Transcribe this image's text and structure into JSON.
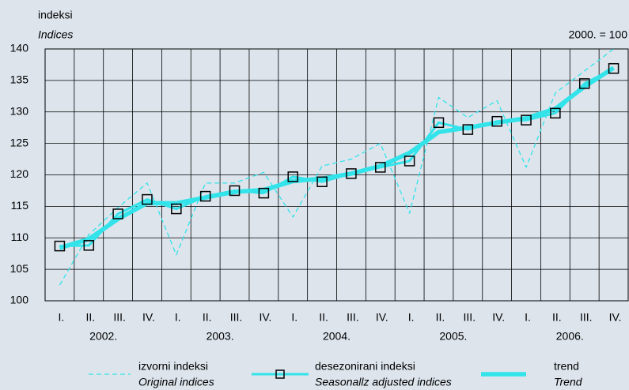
{
  "chart_data": {
    "type": "line",
    "y_label": "indeksi",
    "y_label_en": "Indices",
    "note": "2000. = 100",
    "categories": [
      "I.",
      "II.",
      "III.",
      "IV.",
      "I.",
      "II.",
      "III.",
      "IV.",
      "I.",
      "II.",
      "III.",
      "IV.",
      "I.",
      "II.",
      "III.",
      "IV.",
      "I.",
      "II.",
      "III.",
      "IV."
    ],
    "years": [
      "2002.",
      "2003.",
      "2004.",
      "2005.",
      "2006."
    ],
    "ylim": [
      100,
      140
    ],
    "yticks": [
      100,
      105,
      110,
      115,
      120,
      125,
      130,
      135,
      140
    ],
    "grid": true,
    "series": [
      {
        "name": "izvorni indeksi",
        "name_en": "Original indices",
        "color": "#33e3ea",
        "style": "dashed",
        "values": [
          102.5,
          110.5,
          114.8,
          118.7,
          107.3,
          118.7,
          118.7,
          120.4,
          113.3,
          121.4,
          122.5,
          125.0,
          113.9,
          132.3,
          129.1,
          131.8,
          121.2,
          133.0,
          136.5,
          140.0
        ]
      },
      {
        "name": "desezonirani indeksi",
        "name_en": "Seasonallz adjusted indices",
        "color": "#33e3ea",
        "style": "markers",
        "values": [
          108.7,
          108.8,
          113.8,
          116.1,
          114.6,
          116.6,
          117.5,
          117.1,
          119.7,
          118.9,
          120.2,
          121.2,
          122.2,
          128.3,
          127.2,
          128.5,
          128.7,
          129.8,
          134.5,
          136.9
        ]
      },
      {
        "name": "trend",
        "name_en": "Trend",
        "color": "#33e3ea",
        "style": "thick",
        "values": [
          108.4,
          109.8,
          113.0,
          115.5,
          115.5,
          116.4,
          117.3,
          117.6,
          119.0,
          119.4,
          120.2,
          121.4,
          123.5,
          126.8,
          127.5,
          128.3,
          129.0,
          130.5,
          134.0,
          137.0
        ]
      }
    ]
  }
}
